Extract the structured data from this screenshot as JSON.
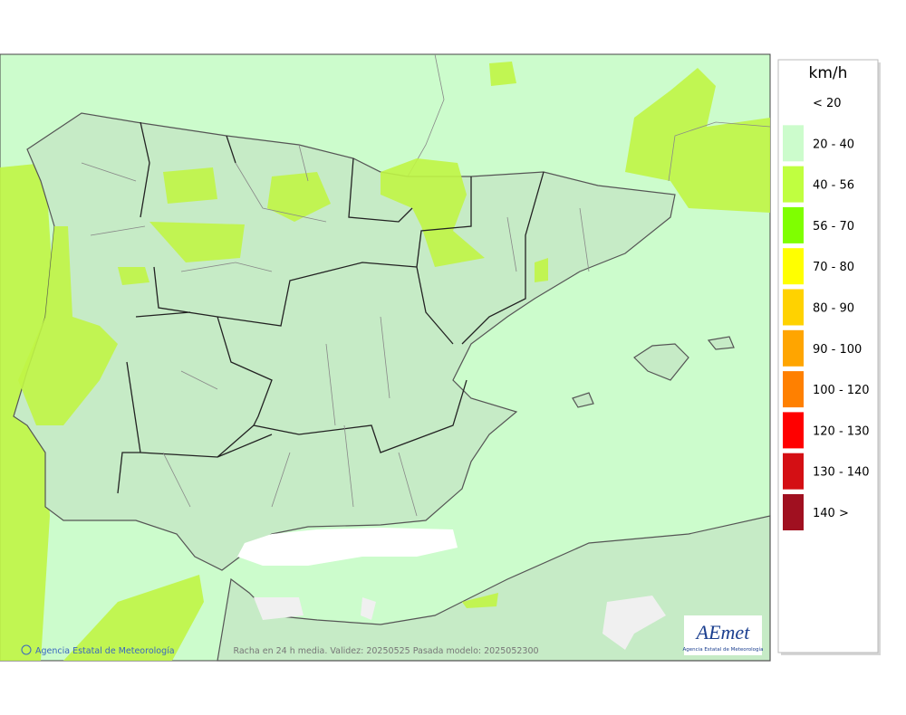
{
  "legend": {
    "title": "km/h",
    "items": [
      {
        "label": "< 20",
        "color": "#ffffff"
      },
      {
        "label": "20 - 40",
        "color": "#ccfccc"
      },
      {
        "label": "40 - 56",
        "color": "#c0ff40"
      },
      {
        "label": "56 - 70",
        "color": "#7fff00"
      },
      {
        "label": "70 - 80",
        "color": "#ffff00"
      },
      {
        "label": "80 - 90",
        "color": "#ffd200"
      },
      {
        "label": "90 - 100",
        "color": "#ffa500"
      },
      {
        "label": "100 - 120",
        "color": "#ff8000"
      },
      {
        "label": "120 - 130",
        "color": "#ff0000"
      },
      {
        "label": "130 - 140",
        "color": "#d40f14"
      },
      {
        "label": "140 >",
        "color": "#a01020"
      }
    ]
  },
  "footer": {
    "credit": "Agencia Estatal de Meteorología",
    "caption": "Racha en 24 h media. Validez: 20250525 Pasada modelo: 2025052300"
  },
  "logo": {
    "name": "AEmet",
    "subtitle": "Agencia Estatal de Meteorología"
  }
}
